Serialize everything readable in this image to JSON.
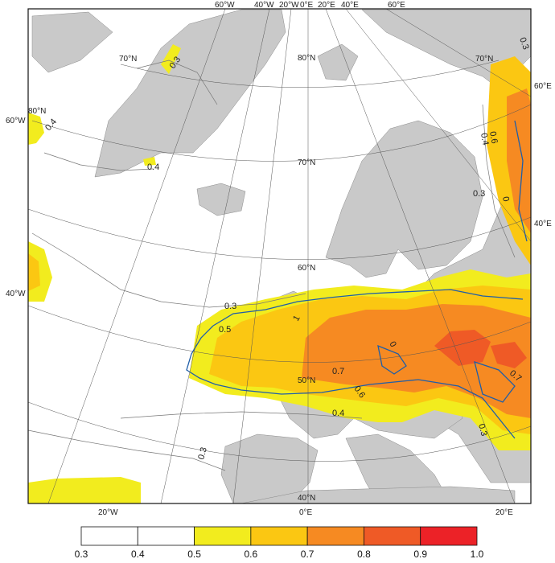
{
  "map": {
    "graticule_labels": {
      "top": [
        "60°W",
        "40°W",
        "20°W",
        "0°E",
        "20°E",
        "40°E",
        "60°E"
      ],
      "bottom": [
        "20°W",
        "0°E",
        "20°E"
      ],
      "left": [
        "60°W",
        "40°W"
      ],
      "right": [
        "60°E",
        "40°E"
      ],
      "latitude": [
        "80°N",
        "70°N",
        "70°N",
        "70°N",
        "60°N",
        "50°N",
        "40°N",
        "80°N"
      ]
    },
    "contour_labels": [
      "0.3",
      "0.3",
      "0.4",
      "0.4",
      "0.3",
      "0.5",
      "0.7",
      "0.6",
      "0.4",
      "0.3",
      "0.6",
      "0.4",
      "0.3",
      "0",
      "0",
      "1",
      "0.7",
      "0.3"
    ]
  },
  "colorbar": {
    "ticks": [
      "0.3",
      "0.4",
      "0.5",
      "0.6",
      "0.7",
      "0.8",
      "0.9",
      "1.0"
    ],
    "colors": [
      "#ffffff",
      "#ffffff",
      "#f2ec1e",
      "#fbc712",
      "#f68a22",
      "#ef5a26",
      "#ec2227"
    ],
    "boundary_color": "#1f5ea8",
    "land_color": "#c9c9c9"
  }
}
